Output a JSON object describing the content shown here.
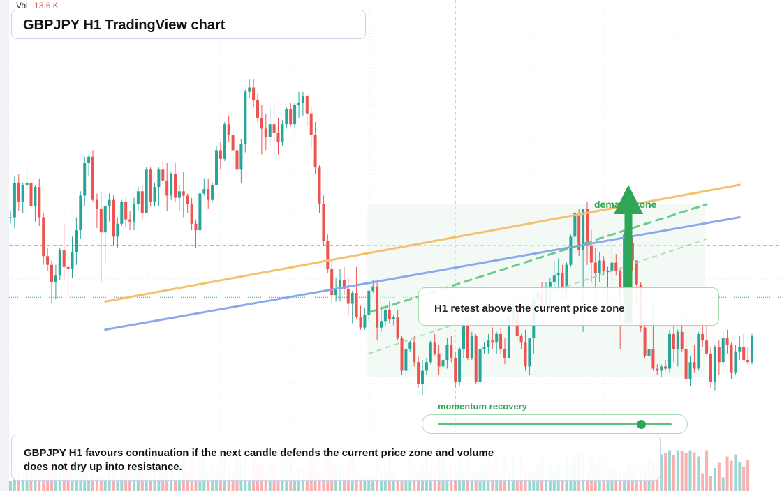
{
  "header": {
    "volume_label": "Vol",
    "volume_value": "13.6 K",
    "title": "GBPJPY H1 TradingView chart"
  },
  "annotations": {
    "callout": "H1 retest above the current price zone",
    "demand_label": "demand zone",
    "momentum_label": "momentum recovery",
    "momentum_level": 0.87,
    "note": "GBPJPY H1 favours continuation if the next candle defends the current price zone and volume does not dry up into resistance."
  },
  "colors": {
    "up": "#26a69a",
    "down": "#ef5350",
    "trend_orange": "#f5c06c",
    "trend_blue": "#8aa8ee",
    "accent_green": "#2ea655",
    "grid": "#e6e9ee"
  },
  "chart_data": {
    "type": "candlestick",
    "symbol": "GBPJPY",
    "timeframe": "H1",
    "x": [
      0,
      1,
      2,
      3,
      4,
      5,
      6,
      7,
      8,
      9,
      10,
      11,
      12,
      13,
      14,
      15,
      16,
      17,
      18,
      19,
      20,
      21,
      22,
      23,
      24,
      25,
      26,
      27,
      28,
      29,
      30,
      31,
      32,
      33,
      34,
      35,
      36,
      37,
      38,
      39,
      40,
      41,
      42,
      43,
      44,
      45,
      46,
      47,
      48,
      49,
      50,
      51,
      52,
      53,
      54,
      55,
      56,
      57,
      58,
      59,
      60,
      61,
      62,
      63,
      64,
      65,
      66,
      67,
      68,
      69,
      70,
      71,
      72,
      73,
      74,
      75,
      76,
      77,
      78,
      79,
      80,
      81,
      82,
      83,
      84,
      85,
      86,
      87,
      88,
      89,
      90,
      91,
      92,
      93,
      94,
      95,
      96,
      97,
      98,
      99,
      100,
      101,
      102,
      103,
      104,
      105,
      106,
      107,
      108,
      109,
      110,
      111,
      112,
      113,
      114,
      115,
      116,
      117,
      118,
      119,
      120,
      121,
      122,
      123,
      124,
      125,
      126,
      127,
      128,
      129,
      130,
      131,
      132,
      133,
      134,
      135,
      136,
      137,
      138,
      139,
      140,
      141,
      142,
      143,
      144,
      145,
      146,
      147,
      148,
      149,
      150,
      151,
      152,
      153,
      154,
      155,
      156,
      157,
      158,
      159,
      160,
      161,
      162,
      163,
      164,
      165,
      166,
      167,
      168,
      169,
      170,
      171,
      172,
      173,
      174,
      175,
      176,
      177,
      178,
      179
    ],
    "ohlc": [
      [
        0.85,
        0.88,
        0.82,
        0.85
      ],
      [
        0.85,
        1.04,
        0.8,
        1.01
      ],
      [
        1.01,
        1.05,
        0.88,
        0.92
      ],
      [
        0.92,
        1.01,
        0.87,
        1.0
      ],
      [
        1.0,
        1.07,
        0.98,
        1.01
      ],
      [
        1.01,
        1.04,
        0.87,
        0.9
      ],
      [
        0.9,
        1.0,
        0.83,
        0.99
      ],
      [
        0.99,
        1.03,
        0.81,
        0.85
      ],
      [
        0.85,
        0.87,
        0.63,
        0.67
      ],
      [
        0.67,
        0.71,
        0.6,
        0.63
      ],
      [
        0.63,
        0.65,
        0.45,
        0.55
      ],
      [
        0.55,
        0.63,
        0.47,
        0.58
      ],
      [
        0.58,
        0.71,
        0.56,
        0.7
      ],
      [
        0.7,
        0.82,
        0.56,
        0.62
      ],
      [
        0.62,
        0.66,
        0.48,
        0.61
      ],
      [
        0.61,
        0.76,
        0.57,
        0.69
      ],
      [
        0.69,
        0.85,
        0.63,
        0.79
      ],
      [
        0.79,
        0.97,
        0.75,
        0.95
      ],
      [
        0.95,
        1.13,
        0.9,
        1.1
      ],
      [
        1.1,
        1.14,
        1.04,
        1.13
      ],
      [
        1.13,
        1.16,
        0.92,
        0.93
      ],
      [
        0.93,
        0.96,
        0.8,
        0.89
      ],
      [
        0.89,
        0.97,
        0.55,
        0.78
      ],
      [
        0.78,
        0.91,
        0.64,
        0.9
      ],
      [
        0.9,
        0.96,
        0.83,
        0.93
      ],
      [
        0.93,
        0.95,
        0.72,
        0.76
      ],
      [
        0.76,
        0.85,
        0.71,
        0.82
      ],
      [
        0.82,
        0.93,
        0.81,
        0.92
      ],
      [
        0.92,
        0.94,
        0.8,
        0.84
      ],
      [
        0.84,
        0.88,
        0.79,
        0.83
      ],
      [
        0.83,
        0.94,
        0.79,
        0.91
      ],
      [
        0.91,
        0.99,
        0.88,
        0.97
      ],
      [
        0.97,
        1.0,
        0.84,
        0.87
      ],
      [
        0.87,
        1.08,
        0.87,
        1.07
      ],
      [
        1.07,
        1.08,
        0.9,
        0.92
      ],
      [
        0.92,
        1.01,
        0.9,
        0.99
      ],
      [
        0.99,
        1.08,
        0.9,
        1.07
      ],
      [
        1.07,
        1.11,
        1.0,
        1.02
      ],
      [
        1.02,
        1.1,
        0.88,
        0.95
      ],
      [
        0.95,
        1.06,
        0.93,
        1.05
      ],
      [
        1.05,
        1.1,
        0.92,
        0.94
      ],
      [
        0.94,
        1.0,
        0.88,
        0.97
      ],
      [
        0.97,
        1.06,
        0.85,
        0.95
      ],
      [
        0.95,
        0.96,
        0.87,
        0.91
      ],
      [
        0.91,
        0.94,
        0.79,
        0.82
      ],
      [
        0.82,
        0.84,
        0.71,
        0.79
      ],
      [
        0.79,
        0.97,
        0.76,
        0.96
      ],
      [
        0.96,
        1.03,
        0.95,
        0.98
      ],
      [
        0.98,
        1.03,
        0.89,
        0.93
      ],
      [
        0.93,
        1.01,
        0.92,
        1.0
      ],
      [
        1.0,
        1.18,
        1.0,
        1.16
      ],
      [
        1.16,
        1.2,
        1.07,
        1.12
      ],
      [
        1.12,
        1.29,
        1.11,
        1.28
      ],
      [
        1.28,
        1.32,
        1.2,
        1.23
      ],
      [
        1.23,
        1.27,
        1.1,
        1.16
      ],
      [
        1.16,
        1.21,
        1.03,
        1.07
      ],
      [
        1.07,
        1.21,
        1.01,
        1.19
      ],
      [
        1.19,
        1.44,
        1.15,
        1.43
      ],
      [
        1.43,
        1.49,
        1.4,
        1.45
      ],
      [
        1.45,
        1.49,
        1.36,
        1.39
      ],
      [
        1.39,
        1.42,
        1.29,
        1.31
      ],
      [
        1.31,
        1.37,
        1.14,
        1.26
      ],
      [
        1.26,
        1.33,
        1.16,
        1.22
      ],
      [
        1.22,
        1.36,
        1.18,
        1.28
      ],
      [
        1.28,
        1.39,
        1.14,
        1.24
      ],
      [
        1.24,
        1.31,
        1.14,
        1.2
      ],
      [
        1.2,
        1.3,
        1.18,
        1.28
      ],
      [
        1.28,
        1.36,
        1.26,
        1.35
      ],
      [
        1.35,
        1.38,
        1.27,
        1.28
      ],
      [
        1.28,
        1.38,
        1.26,
        1.37
      ],
      [
        1.37,
        1.43,
        1.31,
        1.38
      ],
      [
        1.38,
        1.43,
        1.32,
        1.41
      ],
      [
        1.41,
        1.42,
        1.27,
        1.33
      ],
      [
        1.33,
        1.36,
        1.17,
        1.23
      ],
      [
        1.23,
        1.29,
        1.05,
        1.08
      ],
      [
        1.08,
        1.09,
        0.87,
        0.91
      ],
      [
        0.91,
        0.95,
        0.72,
        0.74
      ],
      [
        0.74,
        0.77,
        0.59,
        0.61
      ],
      [
        0.61,
        0.65,
        0.45,
        0.49
      ],
      [
        0.49,
        0.57,
        0.46,
        0.52
      ],
      [
        0.52,
        0.61,
        0.46,
        0.56
      ],
      [
        0.56,
        0.62,
        0.49,
        0.52
      ],
      [
        0.52,
        0.57,
        0.4,
        0.45
      ],
      [
        0.45,
        0.51,
        0.36,
        0.5
      ],
      [
        0.5,
        0.62,
        0.38,
        0.39
      ],
      [
        0.39,
        0.44,
        0.33,
        0.34
      ],
      [
        0.34,
        0.43,
        0.33,
        0.4
      ],
      [
        0.4,
        0.52,
        0.37,
        0.51
      ],
      [
        0.51,
        0.56,
        0.5,
        0.53
      ],
      [
        0.53,
        0.55,
        0.28,
        0.34
      ],
      [
        0.34,
        0.44,
        0.32,
        0.37
      ],
      [
        0.37,
        0.44,
        0.35,
        0.42
      ],
      [
        0.42,
        0.46,
        0.36,
        0.38
      ],
      [
        0.38,
        0.4,
        0.35,
        0.39
      ],
      [
        0.39,
        0.42,
        0.28,
        0.29
      ],
      [
        0.29,
        0.3,
        0.12,
        0.14
      ],
      [
        0.14,
        0.25,
        0.1,
        0.24
      ],
      [
        0.24,
        0.28,
        0.23,
        0.27
      ],
      [
        0.27,
        0.3,
        0.16,
        0.18
      ],
      [
        0.18,
        0.21,
        0.06,
        0.08
      ],
      [
        0.08,
        0.19,
        0.03,
        0.14
      ],
      [
        0.14,
        0.2,
        0.12,
        0.18
      ],
      [
        0.18,
        0.28,
        0.17,
        0.27
      ],
      [
        0.27,
        0.31,
        0.21,
        0.22
      ],
      [
        0.22,
        0.26,
        0.12,
        0.16
      ],
      [
        0.16,
        0.22,
        0.13,
        0.19
      ],
      [
        0.19,
        0.29,
        0.15,
        0.26
      ],
      [
        0.26,
        0.3,
        0.18,
        0.2
      ],
      [
        0.2,
        0.23,
        0.06,
        0.09
      ],
      [
        0.09,
        0.25,
        0.07,
        0.24
      ],
      [
        0.24,
        0.38,
        0.2,
        0.35
      ],
      [
        0.35,
        0.39,
        0.19,
        0.2
      ],
      [
        0.2,
        0.32,
        0.19,
        0.3
      ],
      [
        0.3,
        0.31,
        0.08,
        0.09
      ],
      [
        0.09,
        0.25,
        0.08,
        0.24
      ],
      [
        0.24,
        0.27,
        0.22,
        0.25
      ],
      [
        0.25,
        0.31,
        0.22,
        0.28
      ],
      [
        0.28,
        0.34,
        0.24,
        0.27
      ],
      [
        0.27,
        0.32,
        0.22,
        0.31
      ],
      [
        0.31,
        0.34,
        0.22,
        0.24
      ],
      [
        0.24,
        0.29,
        0.17,
        0.2
      ],
      [
        0.2,
        0.4,
        0.2,
        0.38
      ],
      [
        0.38,
        0.45,
        0.35,
        0.43
      ],
      [
        0.43,
        0.47,
        0.28,
        0.3
      ],
      [
        0.3,
        0.31,
        0.24,
        0.27
      ],
      [
        0.27,
        0.33,
        0.14,
        0.16
      ],
      [
        0.16,
        0.29,
        0.12,
        0.29
      ],
      [
        0.29,
        0.48,
        0.22,
        0.47
      ],
      [
        0.47,
        0.51,
        0.46,
        0.5
      ],
      [
        0.5,
        0.55,
        0.41,
        0.43
      ],
      [
        0.43,
        0.55,
        0.42,
        0.53
      ],
      [
        0.53,
        0.57,
        0.42,
        0.55
      ],
      [
        0.55,
        0.65,
        0.51,
        0.58
      ],
      [
        0.58,
        0.66,
        0.5,
        0.59
      ],
      [
        0.59,
        0.63,
        0.5,
        0.52
      ],
      [
        0.52,
        0.64,
        0.47,
        0.63
      ],
      [
        0.63,
        0.77,
        0.62,
        0.76
      ],
      [
        0.76,
        0.88,
        0.72,
        0.87
      ],
      [
        0.87,
        0.89,
        0.67,
        0.7
      ],
      [
        0.7,
        0.89,
        0.32,
        0.89
      ],
      [
        0.89,
        0.92,
        0.63,
        0.72
      ],
      [
        0.72,
        0.79,
        0.55,
        0.64
      ],
      [
        0.64,
        0.71,
        0.41,
        0.59
      ],
      [
        0.59,
        0.69,
        0.55,
        0.65
      ],
      [
        0.65,
        0.67,
        0.58,
        0.6
      ],
      [
        0.6,
        0.62,
        0.44,
        0.6
      ],
      [
        0.6,
        0.74,
        0.35,
        0.64
      ],
      [
        0.64,
        0.68,
        0.58,
        0.6
      ],
      [
        0.6,
        0.61,
        0.24,
        0.49
      ],
      [
        0.49,
        0.78,
        0.47,
        0.77
      ],
      [
        0.77,
        0.8,
        0.64,
        0.73
      ],
      [
        0.73,
        0.76,
        0.6,
        0.65
      ],
      [
        0.65,
        0.65,
        0.45,
        0.54
      ],
      [
        0.54,
        0.55,
        0.32,
        0.34
      ],
      [
        0.34,
        0.37,
        0.2,
        0.21
      ],
      [
        0.21,
        0.27,
        0.18,
        0.24
      ],
      [
        0.24,
        0.44,
        0.14,
        0.15
      ],
      [
        0.15,
        0.17,
        0.12,
        0.14
      ],
      [
        0.14,
        0.17,
        0.11,
        0.16
      ],
      [
        0.16,
        0.19,
        0.14,
        0.15
      ],
      [
        0.15,
        0.33,
        0.13,
        0.31
      ],
      [
        0.31,
        0.35,
        0.18,
        0.24
      ],
      [
        0.24,
        0.33,
        0.16,
        0.32
      ],
      [
        0.32,
        0.39,
        0.23,
        0.24
      ],
      [
        0.24,
        0.29,
        0.09,
        0.1
      ],
      [
        0.1,
        0.21,
        0.07,
        0.18
      ],
      [
        0.18,
        0.26,
        0.13,
        0.15
      ],
      [
        0.15,
        0.32,
        0.14,
        0.31
      ],
      [
        0.31,
        0.36,
        0.25,
        0.28
      ],
      [
        0.28,
        0.38,
        0.21,
        0.22
      ],
      [
        0.22,
        0.25,
        0.06,
        0.09
      ],
      [
        0.09,
        0.26,
        0.05,
        0.25
      ],
      [
        0.25,
        0.28,
        0.12,
        0.18
      ],
      [
        0.18,
        0.32,
        0.16,
        0.29
      ],
      [
        0.29,
        0.33,
        0.22,
        0.26
      ],
      [
        0.26,
        0.27,
        0.1,
        0.13
      ],
      [
        0.13,
        0.26,
        0.12,
        0.23
      ],
      [
        0.23,
        0.3,
        0.19,
        0.25
      ],
      [
        0.25,
        0.31,
        0.19,
        0.19
      ],
      [
        0.19,
        0.25,
        0.17,
        0.18
      ],
      [
        0.18,
        0.31,
        0.17,
        0.3
      ]
    ],
    "volume": [
      0.1,
      0.2,
      0.16,
      0.17,
      0.36,
      0.4,
      0.3,
      0.26,
      0.36,
      0.32,
      0.35,
      0.34,
      0.23,
      0.38,
      0.23,
      0.33,
      0.36,
      0.39,
      0.4,
      0.16,
      0.21,
      0.13,
      0.12,
      0.11,
      0.21,
      0.38,
      0.11,
      0.2,
      0.27,
      0.34,
      0.32,
      0.39,
      0.29,
      0.16,
      0.11,
      0.34,
      0.13,
      0.18,
      0.24,
      0.2,
      0.11,
      0.36,
      0.34,
      0.2,
      0.32,
      0.13,
      0.37,
      0.33,
      0.19,
      0.25,
      0.23,
      0.34,
      0.38,
      0.26,
      0.18,
      0.38,
      0.29,
      0.34,
      0.11,
      0.31,
      0.26,
      0.27,
      0.2,
      0.26,
      0.27,
      0.11,
      0.4,
      0.32,
      0.29,
      0.12,
      0.23,
      0.22,
      0.25,
      0.31,
      0.29,
      0.2,
      0.4,
      0.38,
      0.3,
      0.26,
      0.23,
      0.12,
      0.3,
      0.38,
      0.22,
      0.19,
      0.15,
      0.15,
      0.14,
      0.28,
      0.21,
      0.2,
      0.39,
      0.19,
      0.12,
      0.13,
      0.1,
      0.31,
      0.24,
      0.24,
      0.28,
      0.38,
      0.21,
      0.24,
      0.35,
      0.34,
      0.19,
      0.26,
      0.19,
      0.34,
      0.18,
      0.32,
      0.19,
      0.19,
      0.21,
      0.26,
      0.34,
      0.25,
      0.35,
      0.15,
      0.36,
      0.22,
      0.32,
      0.12,
      0.36,
      0.23,
      0.2,
      0.18,
      0.26,
      0.31,
      0.17,
      0.23,
      0.19,
      0.25,
      0.13,
      0.34,
      0.3,
      0.35,
      0.38,
      0.34,
      0.18,
      0.31,
      0.26,
      0.31,
      0.25,
      0.3,
      0.21,
      0.22,
      0.19,
      0.18,
      0.27,
      0.22,
      0.16,
      0.26,
      0.24,
      0.32,
      0.28,
      0.29,
      0.35,
      0.36,
      0.39,
      0.34,
      0.39,
      0.38,
      0.36,
      0.39,
      0.37,
      0.33,
      0.17,
      0.39,
      0.14,
      0.22,
      0.27,
      0.13,
      0.33,
      0.29,
      0.35,
      0.28,
      0.23,
      0.3
    ],
    "reference_levels": [
      0.72,
      0.48
    ],
    "trendlines": [
      {
        "color": "orange",
        "x": [
          23,
          177
        ],
        "y": [
          0.46,
          1.0
        ]
      },
      {
        "color": "blue",
        "x": [
          23,
          177
        ],
        "y": [
          0.33,
          0.85
        ]
      },
      {
        "color": "green-dashed",
        "x": [
          87,
          169
        ],
        "y": [
          0.41,
          0.91
        ]
      },
      {
        "color": "green-dashed-faint",
        "x": [
          87,
          169
        ],
        "y": [
          0.22,
          0.75
        ]
      }
    ],
    "arrow": {
      "x": 150,
      "y": [
        0.36,
        1.0
      ]
    },
    "y_range": [
      0,
      1.6
    ]
  }
}
